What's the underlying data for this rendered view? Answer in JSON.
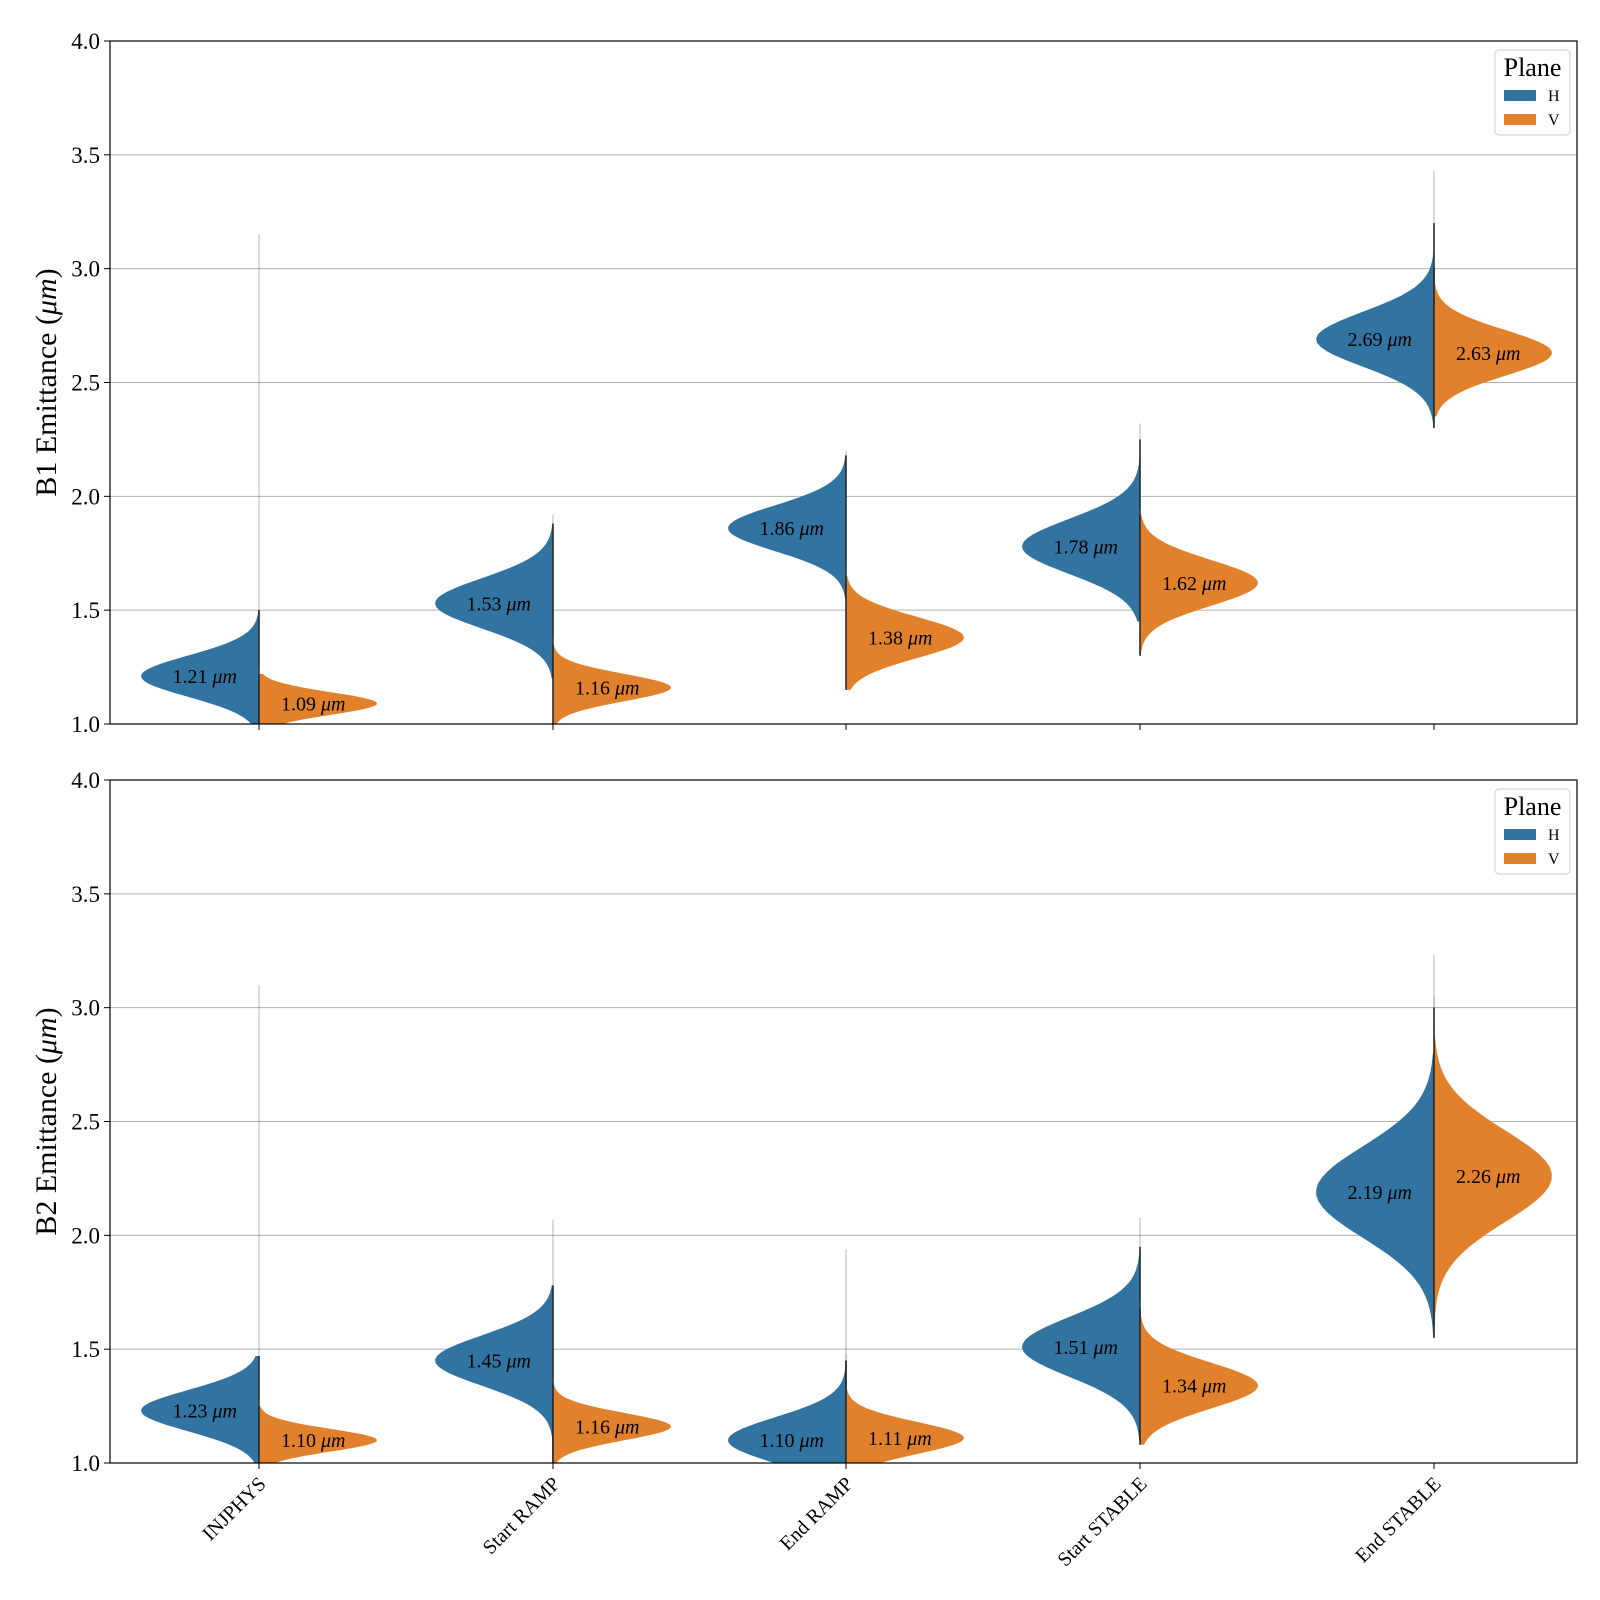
{
  "chart_data": [
    {
      "type": "violin",
      "ylabel_prefix": "B1 Emittance",
      "ylabel_unit": "μm",
      "ylim": [
        1.0,
        4.0
      ],
      "yticks": [
        "1.0",
        "1.5",
        "2.0",
        "2.5",
        "3.0",
        "3.5",
        "4.0"
      ],
      "grid": true,
      "categories": [
        "INJPHYS",
        "Start RAMP",
        "End RAMP",
        "Start STABLE",
        "End STABLE"
      ],
      "legend": {
        "title": "Plane",
        "placement": "top-right",
        "entries": [
          "H",
          "V"
        ]
      },
      "series": [
        {
          "name": "H",
          "color": "#3274a1",
          "medians": [
            1.21,
            1.53,
            1.86,
            1.78,
            2.69
          ],
          "labels": [
            "1.21",
            "1.53",
            "1.86",
            "1.78",
            "2.69"
          ],
          "extent_low": [
            1.0,
            1.2,
            1.55,
            1.45,
            2.3
          ],
          "extent_high": [
            1.5,
            1.88,
            2.18,
            2.25,
            3.2
          ],
          "tail_high": [
            3.15,
            1.92,
            2.2,
            2.32,
            3.43
          ],
          "spread": [
            0.09,
            0.11,
            0.1,
            0.12,
            0.12
          ]
        },
        {
          "name": "V",
          "color": "#e1812c",
          "medians": [
            1.09,
            1.16,
            1.38,
            1.62,
            2.63
          ],
          "labels": [
            "1.09",
            "1.16",
            "1.38",
            "1.62",
            "2.63"
          ],
          "extent_low": [
            1.0,
            1.0,
            1.15,
            1.3,
            2.35
          ],
          "extent_high": [
            1.22,
            1.35,
            1.65,
            1.92,
            3.0
          ],
          "tail_high": [
            1.25,
            1.38,
            1.7,
            1.95,
            3.05
          ],
          "spread": [
            0.05,
            0.06,
            0.09,
            0.1,
            0.1
          ]
        }
      ],
      "annotation_unit": "μm"
    },
    {
      "type": "violin",
      "ylabel_prefix": "B2 Emittance",
      "ylabel_unit": "μm",
      "ylim": [
        1.0,
        4.0
      ],
      "yticks": [
        "1.0",
        "1.5",
        "2.0",
        "2.5",
        "3.0",
        "3.5",
        "4.0"
      ],
      "grid": true,
      "categories": [
        "INJPHYS",
        "Start RAMP",
        "End RAMP",
        "Start STABLE",
        "End STABLE"
      ],
      "legend": {
        "title": "Plane",
        "placement": "top-right",
        "entries": [
          "H",
          "V"
        ]
      },
      "series": [
        {
          "name": "H",
          "color": "#3274a1",
          "medians": [
            1.23,
            1.45,
            1.1,
            1.51,
            2.19
          ],
          "labels": [
            "1.23",
            "1.45",
            "1.10",
            "1.51",
            "2.19"
          ],
          "extent_low": [
            1.0,
            1.0,
            1.0,
            1.1,
            1.55
          ],
          "extent_high": [
            1.47,
            1.78,
            1.45,
            1.95,
            2.8
          ],
          "tail_high": [
            3.1,
            2.07,
            1.94,
            2.08,
            3.23
          ],
          "spread": [
            0.09,
            0.11,
            0.1,
            0.13,
            0.2
          ]
        },
        {
          "name": "V",
          "color": "#e1812c",
          "medians": [
            1.1,
            1.16,
            1.11,
            1.34,
            2.26
          ],
          "labels": [
            "1.10",
            "1.16",
            "1.11",
            "1.34",
            "2.26"
          ],
          "extent_low": [
            1.0,
            1.0,
            1.0,
            1.08,
            1.6
          ],
          "extent_high": [
            1.25,
            1.35,
            1.45,
            1.68,
            3.0
          ],
          "tail_high": [
            1.28,
            1.38,
            1.48,
            1.72,
            3.05
          ],
          "spread": [
            0.05,
            0.06,
            0.07,
            0.1,
            0.2
          ]
        }
      ],
      "annotation_unit": "μm"
    }
  ]
}
